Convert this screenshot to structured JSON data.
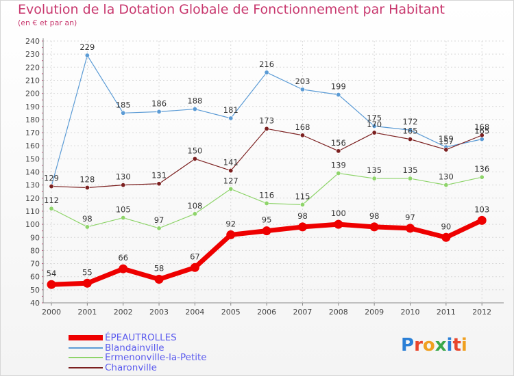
{
  "header": {
    "title": "Evolution de la Dotation Globale de Fonctionnement par Habitant",
    "subtitle": "(en € et par an)"
  },
  "brand": {
    "letters": [
      "P",
      "r",
      "o",
      "x",
      "i",
      "t",
      "i"
    ],
    "colors": [
      "#2a7fd6",
      "#e8452c",
      "#f0a020",
      "#3aa84a",
      "#2a7fd6",
      "#e8452c",
      "#f0a020"
    ]
  },
  "chart_data": {
    "type": "line",
    "title": "Evolution de la Dotation Globale de Fonctionnement par Habitant",
    "subtitle": "(en € et par an)",
    "x": [
      "2000",
      "2001",
      "2002",
      "2003",
      "2004",
      "2005",
      "2006",
      "2007",
      "2008",
      "2009",
      "2010",
      "2011",
      "2012"
    ],
    "ylim": [
      40,
      240
    ],
    "yticks": [
      40,
      50,
      60,
      70,
      80,
      90,
      100,
      110,
      120,
      130,
      140,
      150,
      160,
      170,
      180,
      190,
      200,
      210,
      220,
      230,
      240
    ],
    "grid": true,
    "legend_position": "bottom-left",
    "series": [
      {
        "name": "Blandainville",
        "color": "#5b9bd5",
        "width": 1.2,
        "values": [
          129,
          229,
          185,
          186,
          188,
          181,
          216,
          203,
          199,
          175,
          172,
          159,
          165
        ],
        "labels": [
          null,
          "229",
          "185",
          "186",
          "188",
          "181",
          "216",
          "203",
          "199",
          "175",
          "172",
          "159",
          "165"
        ]
      },
      {
        "name": "Charonville",
        "color": "#7b1f1f",
        "width": 1.2,
        "values": [
          129,
          128,
          130,
          131,
          150,
          141,
          173,
          168,
          156,
          170,
          165,
          157,
          168
        ],
        "labels": [
          "129",
          "128",
          "130",
          "131",
          "150",
          "141",
          "173",
          "168",
          "156",
          "170",
          "165",
          "157",
          "168"
        ]
      },
      {
        "name": "Ermenonville-la-Petite",
        "color": "#8ed46a",
        "width": 1.2,
        "values": [
          112,
          98,
          105,
          97,
          108,
          127,
          116,
          115,
          139,
          135,
          135,
          130,
          136
        ],
        "labels": [
          "112",
          "98",
          "105",
          "97",
          "108",
          "127",
          "116",
          "115",
          "139",
          "135",
          "135",
          "130",
          "136"
        ]
      },
      {
        "name": "ÉPEAUTROLLES",
        "color": "#ee0000",
        "width": 7,
        "values": [
          54,
          55,
          66,
          58,
          67,
          92,
          95,
          98,
          100,
          98,
          97,
          90,
          103
        ],
        "labels": [
          "54",
          "55",
          "66",
          "58",
          "67",
          "92",
          "95",
          "98",
          "100",
          "98",
          "97",
          "90",
          "103"
        ]
      }
    ],
    "legend_order": [
      "ÉPEAUTROLLES",
      "Blandainville",
      "Ermenonville-la-Petite",
      "Charonville"
    ]
  }
}
